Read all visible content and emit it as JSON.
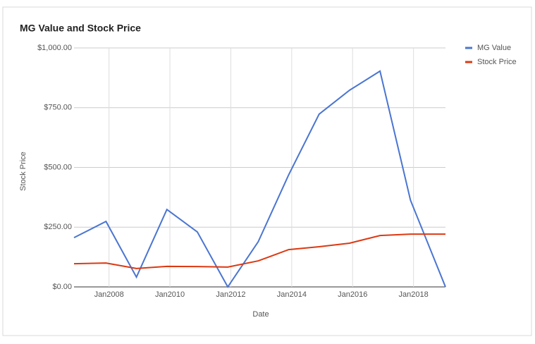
{
  "chart_data": {
    "type": "line",
    "title": "MG Value and Stock Price",
    "x_label": "Date",
    "y_label": "Stock Price",
    "x": [
      2006.85,
      2007.9,
      2008.9,
      2009.9,
      2010.9,
      2011.9,
      2012.9,
      2013.9,
      2014.9,
      2015.9,
      2016.9,
      2017.9,
      2019.05
    ],
    "series": [
      {
        "name": "MG Value",
        "color": "#4a75d1",
        "values": [
          206,
          274,
          41,
          324,
          230,
          0,
          189,
          469,
          723,
          823,
          903,
          363,
          0
        ]
      },
      {
        "name": "Stock Price",
        "color": "#dc3912",
        "values": [
          97,
          100,
          77,
          86,
          85,
          83,
          109,
          156,
          168,
          183,
          215,
          221,
          221
        ]
      }
    ],
    "xlim": [
      2006.85,
      2019.05
    ],
    "xticks": [
      {
        "value": 2008,
        "label": "Jan2008"
      },
      {
        "value": 2010,
        "label": "Jan2010"
      },
      {
        "value": 2012,
        "label": "Jan2012"
      },
      {
        "value": 2014,
        "label": "Jan2014"
      },
      {
        "value": 2016,
        "label": "Jan2016"
      },
      {
        "value": 2018,
        "label": "Jan2018"
      }
    ],
    "ylim": [
      0,
      1000
    ],
    "yticks": [
      {
        "value": 0,
        "label": "$0.00"
      },
      {
        "value": 250,
        "label": "$250.00"
      },
      {
        "value": 500,
        "label": "$500.00"
      },
      {
        "value": 750,
        "label": "$750.00"
      },
      {
        "value": 1000,
        "label": "$1,000.00"
      }
    ],
    "grid": true,
    "legend": "right"
  }
}
